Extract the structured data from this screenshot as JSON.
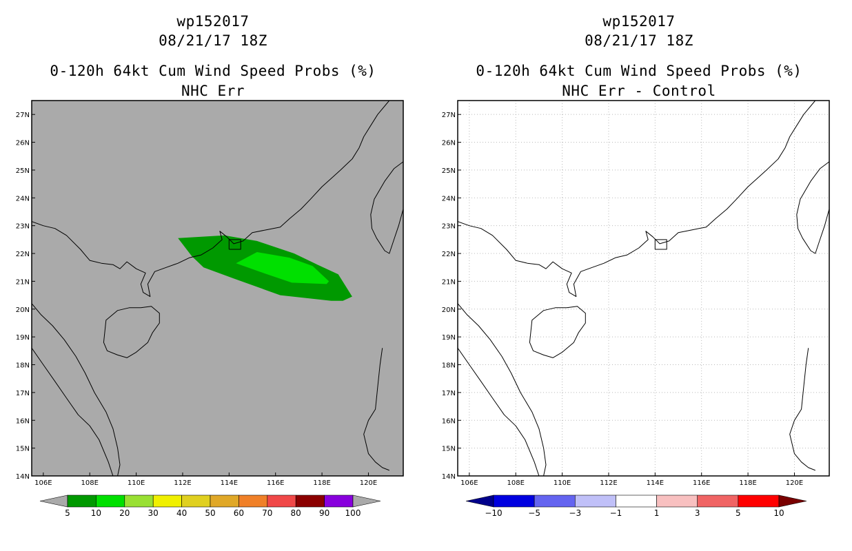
{
  "chart_data": [
    {
      "type": "heatmap",
      "storm_id": "wp152017",
      "datetime": "08/21/17 18Z",
      "title": "0-120h 64kt Cum Wind Speed Probs (%)",
      "subtitle": "NHC Err",
      "xlim": [
        105.5,
        121.5
      ],
      "ylim": [
        14,
        27.5
      ],
      "xticks": [
        "106E",
        "108E",
        "110E",
        "112E",
        "114E",
        "116E",
        "118E",
        "120E"
      ],
      "yticks": [
        "14N",
        "15N",
        "16N",
        "17N",
        "18N",
        "19N",
        "20N",
        "21N",
        "22N",
        "23N",
        "24N",
        "25N",
        "26N",
        "27N"
      ],
      "grid": false,
      "background": "#aaaaaa",
      "colorbar": {
        "labels": [
          "5",
          "10",
          "20",
          "30",
          "40",
          "50",
          "60",
          "70",
          "80",
          "90",
          "100"
        ],
        "colors": [
          "#009900",
          "#00e000",
          "#99e033",
          "#f0f000",
          "#e0d020",
          "#e0a828",
          "#f08028",
          "#f04848",
          "#8b0000",
          "#8800dd"
        ],
        "left_arrow_color": "#aaaaaa",
        "right_arrow_color": "#aaaaaa"
      },
      "contours": [
        {
          "level": "5-10%",
          "color": "#009900",
          "lon": [
            111.8,
            113.8,
            115.2,
            116.8,
            117.8,
            118.7,
            119.3,
            118.9,
            118.4,
            116.2,
            114.2,
            112.9,
            112.4,
            111.8
          ],
          "lat": [
            22.55,
            22.65,
            22.45,
            22.0,
            21.6,
            21.25,
            20.45,
            20.3,
            20.3,
            20.5,
            21.1,
            21.5,
            21.9,
            22.55
          ]
        },
        {
          "level": "10-20%",
          "color": "#00e000",
          "lon": [
            114.3,
            115.2,
            116.6,
            117.6,
            118.3,
            118.2,
            116.7,
            115.3,
            114.3
          ],
          "lat": [
            21.65,
            22.05,
            21.85,
            21.55,
            21.0,
            20.9,
            20.95,
            21.35,
            21.65
          ]
        }
      ]
    },
    {
      "type": "heatmap",
      "storm_id": "wp152017",
      "datetime": "08/21/17 18Z",
      "title": "0-120h 64kt Cum Wind Speed Probs (%)",
      "subtitle": "NHC Err - Control",
      "xlim": [
        105.5,
        121.5
      ],
      "ylim": [
        14,
        27.5
      ],
      "xticks": [
        "106E",
        "108E",
        "110E",
        "112E",
        "114E",
        "116E",
        "118E",
        "120E"
      ],
      "yticks": [
        "14N",
        "15N",
        "16N",
        "17N",
        "18N",
        "19N",
        "20N",
        "21N",
        "22N",
        "23N",
        "24N",
        "25N",
        "26N",
        "27N"
      ],
      "grid": true,
      "background": "#ffffff",
      "colorbar": {
        "labels": [
          "−10",
          "−5",
          "−3",
          "−1",
          "1",
          "3",
          "5",
          "10"
        ],
        "colors": [
          "#0000e0",
          "#6464f0",
          "#c0c0f8",
          "#ffffff",
          "#f8c0c0",
          "#f06464",
          "#ff0000"
        ],
        "left_arrow_color": "#00008b",
        "right_arrow_color": "#7a0000"
      },
      "contours": []
    }
  ]
}
